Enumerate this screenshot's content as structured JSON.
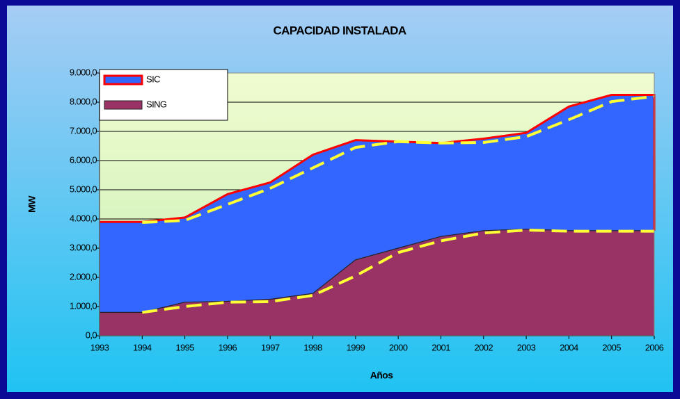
{
  "chart_data": {
    "type": "stacked_area",
    "title": "CAPACIDAD INSTALADA",
    "x_label": "Años",
    "y_label": "MW",
    "categories": [
      "1993",
      "1994",
      "1995",
      "1996",
      "1997",
      "1998",
      "1999",
      "2000",
      "2001",
      "2002",
      "2003",
      "2004",
      "2005",
      "2006"
    ],
    "series": [
      {
        "name": "SIC",
        "color": "#3366ff",
        "edge_color": "#ff0000",
        "values": [
          3100,
          3100,
          2900,
          3670,
          4000,
          4750,
          4100,
          3650,
          3200,
          3150,
          3300,
          4250,
          4650,
          4650
        ]
      },
      {
        "name": "SING",
        "color": "#993366",
        "values": [
          800,
          800,
          1150,
          1180,
          1250,
          1450,
          2600,
          3000,
          3400,
          3600,
          3650,
          3600,
          3600,
          3600
        ]
      }
    ],
    "overlays": [
      {
        "color": "#ffff33",
        "values": [
          null,
          3880,
          3950,
          4500,
          5050,
          5750,
          6450,
          6650,
          6600,
          6620,
          6820,
          7400,
          8020,
          8200
        ]
      },
      {
        "color": "#ffff33",
        "values": [
          null,
          800,
          1000,
          1150,
          1170,
          1380,
          2050,
          2850,
          3250,
          3520,
          3620,
          3580,
          3580,
          3580
        ]
      }
    ],
    "ylim": [
      0,
      9000
    ],
    "yticks": [
      {
        "value": 0,
        "label": "0,0"
      },
      {
        "value": 1000,
        "label": "1.000,0"
      },
      {
        "value": 2000,
        "label": "2.000,0"
      },
      {
        "value": 3000,
        "label": "3.000,0"
      },
      {
        "value": 4000,
        "label": "4.000,0"
      },
      {
        "value": 5000,
        "label": "5.000,0"
      },
      {
        "value": 6000,
        "label": "6.000,0"
      },
      {
        "value": 7000,
        "label": "7.000,0"
      },
      {
        "value": 8000,
        "label": "8.000,0"
      },
      {
        "value": 9000,
        "label": "9.000,0"
      }
    ],
    "grid": true,
    "legend": "top-left"
  }
}
